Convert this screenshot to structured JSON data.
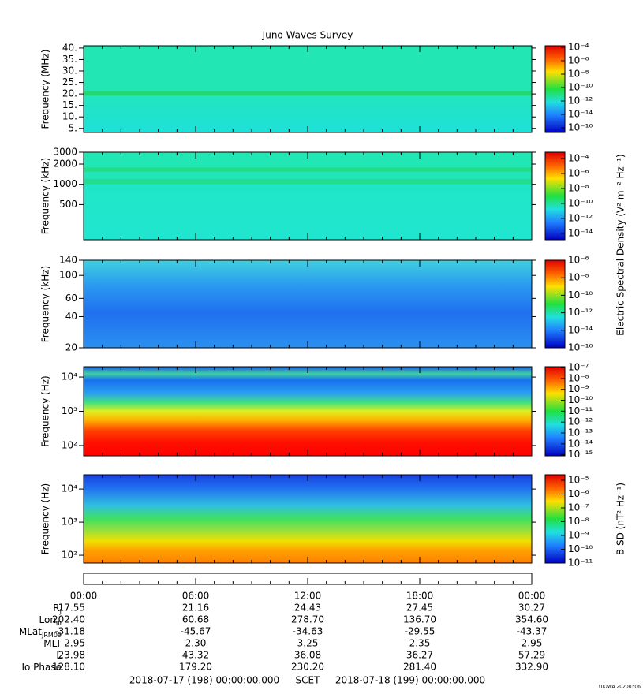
{
  "title": "Juno Waves Survey",
  "chart_data": [
    {
      "type": "spectrogram",
      "ylabel": "Frequency (MHz)",
      "ylim": [
        3.2,
        41
      ],
      "ylog": false,
      "yticks": [
        {
          "value": 40,
          "label": "40."
        },
        {
          "value": 35,
          "label": "35."
        },
        {
          "value": 30,
          "label": "30."
        },
        {
          "value": 25,
          "label": "25."
        },
        {
          "value": 20,
          "label": "20."
        },
        {
          "value": 15,
          "label": "15."
        },
        {
          "value": 10,
          "label": "10."
        },
        {
          "value": 5,
          "label": "5."
        }
      ],
      "clim": [
        2e-17,
        0.00017
      ],
      "clog": true,
      "cticks": [
        {
          "value": 0.0001,
          "label": "10⁻⁴"
        },
        {
          "value": 1e-06,
          "label": "10⁻⁶"
        },
        {
          "value": 1e-08,
          "label": "10⁻⁸"
        },
        {
          "value": 1e-10,
          "label": "10⁻¹⁰"
        },
        {
          "value": 1e-12,
          "label": "10⁻¹²"
        },
        {
          "value": 1e-14,
          "label": "10⁻¹⁴"
        },
        {
          "value": 1e-16,
          "label": "10⁻¹⁶"
        }
      ]
    },
    {
      "type": "spectrogram",
      "ylabel": "Frequency (kHz)",
      "ylim": [
        150,
        3000
      ],
      "ylog": true,
      "yticks": [
        3000,
        2000,
        1000,
        500
      ],
      "clim": [
        1.4e-15,
        0.0007
      ],
      "clog": true,
      "cticks": [
        {
          "value": 0.0001,
          "label": "10⁻⁴"
        },
        {
          "value": 1e-06,
          "label": "10⁻⁶"
        },
        {
          "value": 1e-08,
          "label": "10⁻⁸"
        },
        {
          "value": 1e-10,
          "label": "10⁻¹⁰"
        },
        {
          "value": 1e-12,
          "label": "10⁻¹²"
        },
        {
          "value": 1e-14,
          "label": "10⁻¹⁴"
        }
      ],
      "clabel": "Electric Spectral Density (V² m⁻² Hz⁻¹)"
    },
    {
      "type": "spectrogram",
      "ylabel": "Frequency (kHz)",
      "ylim": [
        20,
        140
      ],
      "ylog": true,
      "yticks": [
        140,
        100,
        60,
        40,
        20
      ],
      "clim": [
        1e-16,
        1e-06
      ],
      "clog": true,
      "cticks": [
        {
          "value": 1e-06,
          "label": "10⁻⁶"
        },
        {
          "value": 1e-08,
          "label": "10⁻⁸"
        },
        {
          "value": 1e-10,
          "label": "10⁻¹⁰"
        },
        {
          "value": 1e-12,
          "label": "10⁻¹²"
        },
        {
          "value": 1e-14,
          "label": "10⁻¹⁴"
        },
        {
          "value": 1e-16,
          "label": "10⁻¹⁶"
        }
      ]
    },
    {
      "type": "spectrogram",
      "ylabel": "Frequency (Hz)",
      "ylim": [
        50,
        20000
      ],
      "ylog": true,
      "yticks": [
        {
          "value": 10000,
          "label": "10⁴"
        },
        {
          "value": 1000,
          "label": "10³"
        },
        {
          "value": 100,
          "label": "10²"
        }
      ],
      "clim": [
        8e-16,
        1.2e-07
      ],
      "clog": true,
      "cticks": [
        {
          "value": 1e-07,
          "label": "10⁻⁷"
        },
        {
          "value": 1e-08,
          "label": "10⁻⁸"
        },
        {
          "value": 1e-09,
          "label": "10⁻⁹"
        },
        {
          "value": 1e-10,
          "label": "10⁻¹⁰"
        },
        {
          "value": 1e-11,
          "label": "10⁻¹¹"
        },
        {
          "value": 1e-12,
          "label": "10⁻¹²"
        },
        {
          "value": 1e-13,
          "label": "10⁻¹³"
        },
        {
          "value": 1e-14,
          "label": "10⁻¹⁴"
        },
        {
          "value": 1e-15,
          "label": "10⁻¹⁵"
        }
      ]
    },
    {
      "type": "spectrogram",
      "ylabel": "Frequency (Hz)",
      "ylim": [
        58,
        27000
      ],
      "ylog": true,
      "yticks": [
        {
          "value": 10000,
          "label": "10⁴"
        },
        {
          "value": 1000,
          "label": "10³"
        },
        {
          "value": 100,
          "label": "10²"
        }
      ],
      "clim": [
        1e-11,
        2.5e-05
      ],
      "clog": true,
      "cticks": [
        {
          "value": 1e-05,
          "label": "10⁻⁵"
        },
        {
          "value": 1e-06,
          "label": "10⁻⁶"
        },
        {
          "value": 1e-07,
          "label": "10⁻⁷"
        },
        {
          "value": 1e-08,
          "label": "10⁻⁸"
        },
        {
          "value": 1e-09,
          "label": "10⁻⁹"
        },
        {
          "value": 1e-10,
          "label": "10⁻¹⁰"
        },
        {
          "value": 1e-11,
          "label": "10⁻¹¹"
        }
      ],
      "clabel": "B SD (nT² Hz⁻¹)"
    }
  ],
  "time_axis": {
    "xlim": [
      0,
      24
    ],
    "xticks": [
      {
        "value": 0,
        "label": "00:00"
      },
      {
        "value": 6,
        "label": "06:00"
      },
      {
        "value": 12,
        "label": "12:00"
      },
      {
        "value": 18,
        "label": "18:00"
      },
      {
        "value": 24,
        "label": "00:00"
      }
    ]
  },
  "ephemeris": {
    "rows": [
      {
        "label": "R",
        "sub": "J",
        "values": [
          "17.55",
          "21.16",
          "24.43",
          "27.45",
          "30.27"
        ]
      },
      {
        "label": "Lon",
        "sub": "III",
        "values": [
          "202.40",
          "60.68",
          "278.70",
          "136.70",
          "354.60"
        ]
      },
      {
        "label": "MLat",
        "sub": "JRM09",
        "values": [
          "-31.18",
          "-45.67",
          "-34.63",
          "-29.55",
          "-43.37"
        ]
      },
      {
        "label": "MLT",
        "values": [
          "2.95",
          "2.30",
          "3.25",
          "2.35",
          "2.95"
        ]
      },
      {
        "label": "L",
        "values": [
          "23.98",
          "43.32",
          "36.08",
          "36.27",
          "57.29"
        ]
      },
      {
        "label": "Io Phase",
        "values": [
          "128.10",
          "179.20",
          "230.20",
          "281.40",
          "332.90"
        ]
      }
    ]
  },
  "footer": {
    "start": "2018-07-17 (198) 00:00:00.000",
    "scet": "SCET",
    "end": "2018-07-18 (199) 00:00:00.000"
  },
  "stamp": "UIOWA 20200306"
}
